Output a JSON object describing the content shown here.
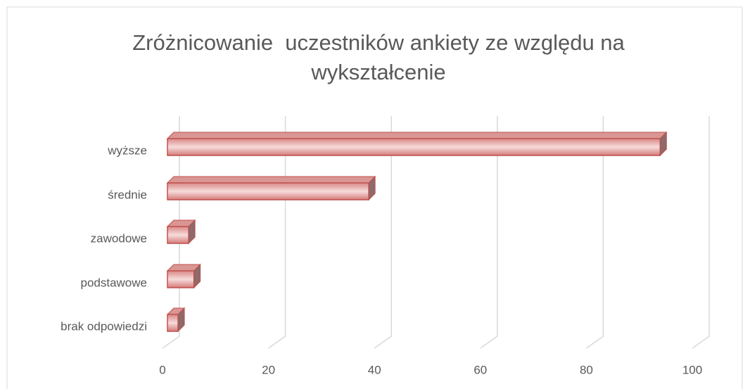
{
  "chart_data": {
    "type": "bar",
    "orientation": "horizontal",
    "title": "Zróżnicowanie  uczestników ankiety ze względu na wykształcenie",
    "categories": [
      "wyższe",
      "średnie",
      "zawodowe",
      "podstawowe",
      "brak odpowiedzi"
    ],
    "values": [
      93,
      38,
      4,
      5,
      2
    ],
    "color": "#c0504d",
    "xlim": [
      0,
      100
    ],
    "xticks": [
      0,
      20,
      40,
      60,
      80,
      100
    ],
    "grid": true
  }
}
